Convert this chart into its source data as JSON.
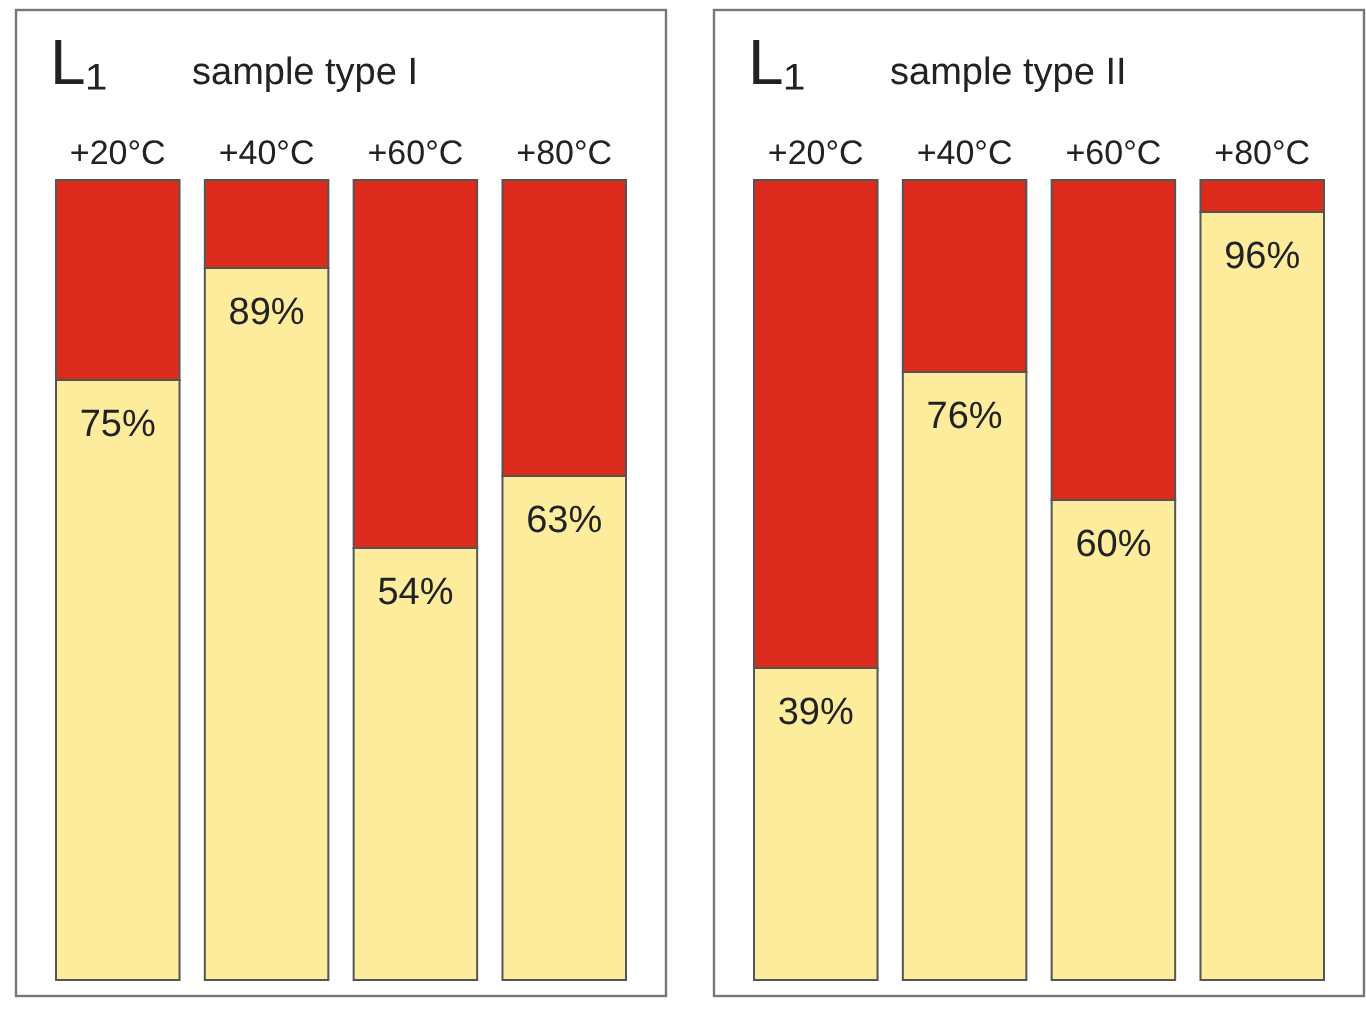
{
  "chart_data": [
    {
      "type": "bar",
      "title": "L₁",
      "subtitle": "sample type I",
      "categories": [
        "+20°C",
        "+40°C",
        "+60°C",
        "+80°C"
      ],
      "stacked": true,
      "tick_labels": "x",
      "series": [
        {
          "color": "#fcec9c",
          "values": [
            75,
            89,
            54,
            63
          ],
          "value_labels": [
            "75%",
            "89%",
            "54%",
            "63%"
          ]
        },
        {
          "color": "#dc2a1c",
          "values": [
            25,
            11,
            46,
            37
          ]
        }
      ]
    },
    {
      "type": "bar",
      "title": "L₁",
      "subtitle": "sample type II",
      "categories": [
        "+20°C",
        "+40°C",
        "+60°C",
        "+80°C"
      ],
      "stacked": true,
      "tick_labels": "x",
      "series": [
        {
          "color": "#fcec9c",
          "values": [
            39,
            76,
            60,
            96
          ],
          "value_labels": [
            "39%",
            "76%",
            "60%",
            "96%"
          ]
        },
        {
          "color": "#dc2a1c",
          "values": [
            61,
            24,
            40,
            4
          ]
        }
      ]
    }
  ]
}
